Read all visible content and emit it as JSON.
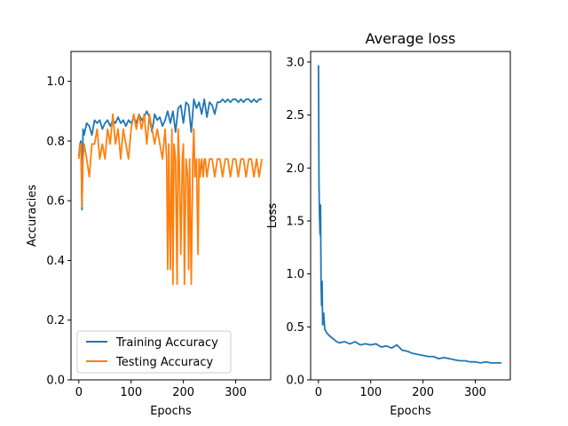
{
  "chart_data": [
    {
      "type": "line",
      "title": "",
      "xlabel": "Epochs",
      "ylabel": "Accuracies",
      "xlim": [
        -15,
        367
      ],
      "ylim": [
        0.0,
        1.1
      ],
      "xticks": [
        0,
        100,
        200,
        300
      ],
      "yticks": [
        0.0,
        0.2,
        0.4,
        0.6,
        0.8,
        1.0
      ],
      "xtick_labels": [
        "0",
        "100",
        "200",
        "300"
      ],
      "ytick_labels": [
        "0.0",
        "0.2",
        "0.4",
        "0.6",
        "0.8",
        "1.0"
      ],
      "legend_position": "lower-left",
      "series": [
        {
          "name": "Training Accuracy",
          "color": "#1f77b4",
          "x": [
            0,
            2,
            4,
            6,
            8,
            10,
            15,
            20,
            25,
            30,
            35,
            40,
            45,
            50,
            55,
            60,
            65,
            70,
            75,
            80,
            85,
            90,
            95,
            100,
            105,
            110,
            115,
            120,
            125,
            130,
            135,
            140,
            145,
            150,
            155,
            160,
            165,
            170,
            175,
            180,
            185,
            190,
            195,
            200,
            205,
            210,
            215,
            220,
            225,
            230,
            235,
            240,
            245,
            250,
            255,
            260,
            265,
            270,
            275,
            280,
            285,
            290,
            295,
            300,
            305,
            310,
            315,
            320,
            325,
            330,
            335,
            340,
            345,
            350
          ],
          "y": [
            0.75,
            0.79,
            0.8,
            0.57,
            0.84,
            0.82,
            0.86,
            0.85,
            0.82,
            0.87,
            0.86,
            0.87,
            0.84,
            0.86,
            0.87,
            0.85,
            0.87,
            0.86,
            0.88,
            0.86,
            0.87,
            0.85,
            0.87,
            0.86,
            0.88,
            0.86,
            0.89,
            0.87,
            0.88,
            0.9,
            0.88,
            0.83,
            0.89,
            0.87,
            0.88,
            0.85,
            0.87,
            0.9,
            0.86,
            0.9,
            0.83,
            0.91,
            0.92,
            0.86,
            0.93,
            0.92,
            0.83,
            0.94,
            0.91,
            0.93,
            0.89,
            0.94,
            0.88,
            0.93,
            0.92,
            0.89,
            0.93,
            0.93,
            0.94,
            0.93,
            0.94,
            0.93,
            0.94,
            0.94,
            0.93,
            0.94,
            0.93,
            0.94,
            0.94,
            0.93,
            0.94,
            0.93,
            0.94,
            0.94
          ]
        },
        {
          "name": "Testing Accuracy",
          "color": "#ff7f0e",
          "x": [
            0,
            2,
            4,
            6,
            8,
            10,
            15,
            20,
            25,
            30,
            35,
            40,
            45,
            50,
            55,
            60,
            65,
            70,
            75,
            80,
            85,
            90,
            95,
            100,
            105,
            110,
            115,
            120,
            125,
            130,
            135,
            140,
            145,
            150,
            155,
            160,
            165,
            168,
            170,
            172,
            175,
            178,
            180,
            182,
            185,
            188,
            190,
            192,
            195,
            198,
            200,
            202,
            205,
            208,
            210,
            212,
            215,
            218,
            220,
            222,
            225,
            228,
            230,
            232,
            235,
            238,
            240,
            242,
            245,
            250,
            255,
            260,
            265,
            270,
            275,
            280,
            285,
            290,
            295,
            300,
            305,
            310,
            315,
            320,
            325,
            330,
            335,
            340,
            345,
            350
          ],
          "y": [
            0.74,
            0.79,
            0.79,
            0.58,
            0.74,
            0.79,
            0.74,
            0.68,
            0.79,
            0.79,
            0.84,
            0.74,
            0.79,
            0.74,
            0.84,
            0.79,
            0.89,
            0.79,
            0.84,
            0.74,
            0.84,
            0.79,
            0.74,
            0.84,
            0.89,
            0.84,
            0.89,
            0.84,
            0.89,
            0.79,
            0.89,
            0.84,
            0.79,
            0.84,
            0.79,
            0.74,
            0.84,
            0.74,
            0.37,
            0.79,
            0.37,
            0.84,
            0.32,
            0.79,
            0.74,
            0.32,
            0.84,
            0.74,
            0.42,
            0.74,
            0.79,
            0.32,
            0.74,
            0.68,
            0.37,
            0.74,
            0.32,
            0.74,
            0.84,
            0.68,
            0.74,
            0.42,
            0.74,
            0.68,
            0.74,
            0.68,
            0.74,
            0.74,
            0.68,
            0.74,
            0.74,
            0.68,
            0.74,
            0.74,
            0.68,
            0.74,
            0.74,
            0.68,
            0.74,
            0.74,
            0.68,
            0.74,
            0.74,
            0.68,
            0.74,
            0.74,
            0.68,
            0.74,
            0.68,
            0.74
          ]
        }
      ]
    },
    {
      "type": "line",
      "title": "Average loss",
      "xlabel": "Epochs",
      "ylabel": "Loss",
      "xlim": [
        -15,
        367
      ],
      "ylim": [
        0.0,
        3.1
      ],
      "xticks": [
        0,
        100,
        200,
        300
      ],
      "yticks": [
        0.0,
        0.5,
        1.0,
        1.5,
        2.0,
        2.5,
        3.0
      ],
      "xtick_labels": [
        "0",
        "100",
        "200",
        "300"
      ],
      "ytick_labels": [
        "0.0",
        "0.5",
        "1.0",
        "1.5",
        "2.0",
        "2.5",
        "3.0"
      ],
      "series": [
        {
          "name": "",
          "color": "#1f77b4",
          "x": [
            0,
            1,
            2,
            3,
            4,
            5,
            6,
            7,
            8,
            10,
            12,
            15,
            20,
            25,
            30,
            35,
            40,
            50,
            60,
            70,
            80,
            90,
            100,
            110,
            120,
            130,
            140,
            150,
            160,
            170,
            180,
            190,
            200,
            210,
            220,
            230,
            240,
            250,
            260,
            270,
            280,
            290,
            300,
            310,
            320,
            330,
            340,
            350
          ],
          "y": [
            2.97,
            1.85,
            1.55,
            1.37,
            1.65,
            0.9,
            0.7,
            0.93,
            0.52,
            0.63,
            0.48,
            0.45,
            0.42,
            0.4,
            0.38,
            0.36,
            0.35,
            0.36,
            0.34,
            0.36,
            0.33,
            0.34,
            0.33,
            0.34,
            0.31,
            0.32,
            0.3,
            0.33,
            0.28,
            0.27,
            0.25,
            0.24,
            0.23,
            0.22,
            0.22,
            0.2,
            0.21,
            0.2,
            0.19,
            0.18,
            0.18,
            0.17,
            0.17,
            0.16,
            0.17,
            0.16,
            0.16,
            0.16
          ]
        }
      ]
    }
  ]
}
